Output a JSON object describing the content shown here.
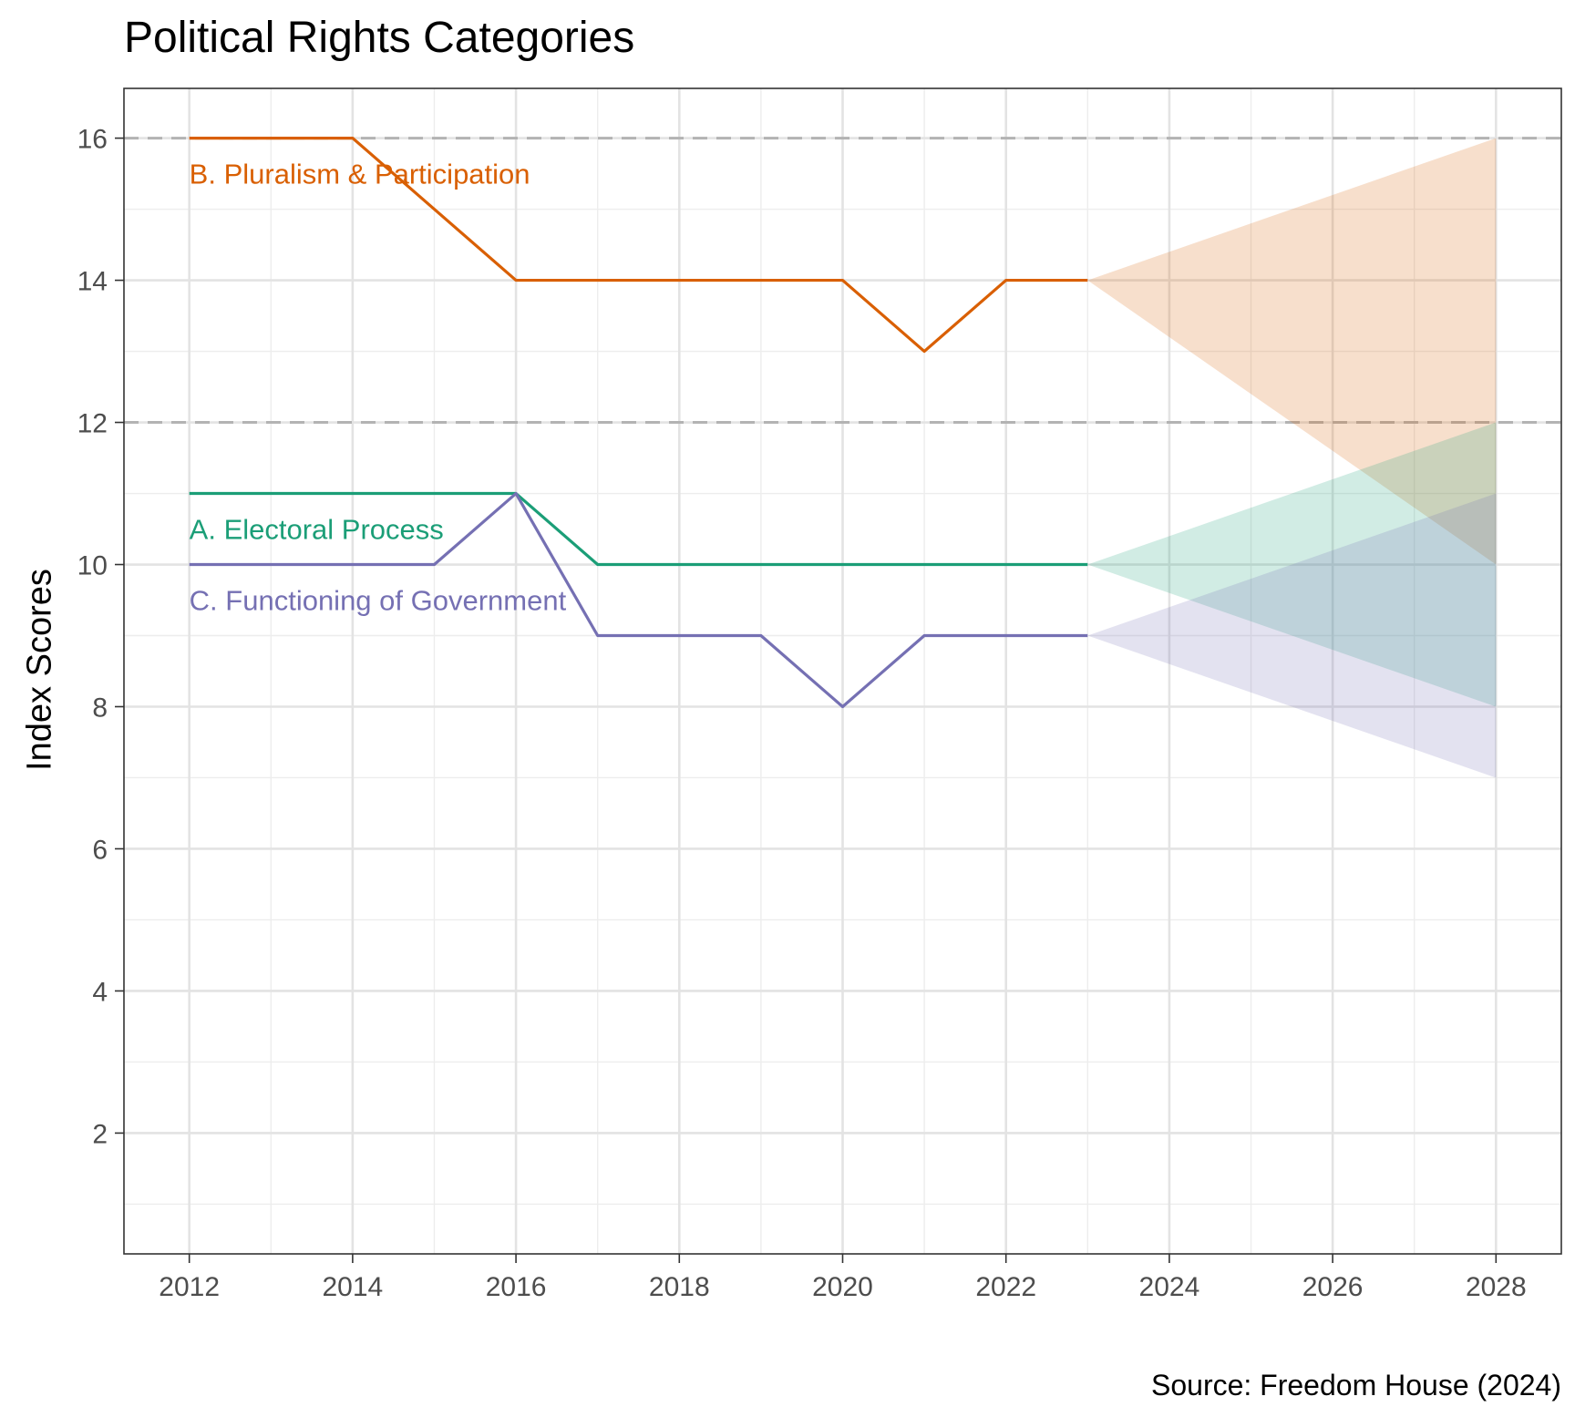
{
  "chart_data": {
    "type": "line",
    "title": "Political Rights Categories",
    "ylabel": "Index Scores",
    "xlabel": "",
    "caption": "Source: Freedom House (2024)",
    "xlim": [
      2011.2,
      2028.8
    ],
    "ylim": [
      0.3,
      16.7
    ],
    "x_ticks": [
      2012,
      2014,
      2016,
      2018,
      2020,
      2022,
      2024,
      2026,
      2028
    ],
    "y_ticks": [
      2,
      4,
      6,
      8,
      10,
      12,
      14,
      16
    ],
    "grid": true,
    "reference_lines": [
      16,
      12
    ],
    "x": [
      2012,
      2013,
      2014,
      2015,
      2016,
      2017,
      2018,
      2019,
      2020,
      2021,
      2022,
      2023
    ],
    "series": [
      {
        "name": "B. Pluralism & Participation",
        "color": "#D95F02",
        "values": [
          16,
          16,
          16,
          15,
          14,
          14,
          14,
          14,
          14,
          13,
          14,
          14
        ],
        "projection": {
          "from": [
            2023,
            14
          ],
          "to_x": 2028,
          "upper": 16,
          "lower": 10
        }
      },
      {
        "name": "A. Electoral Process",
        "color": "#1B9E77",
        "values": [
          11,
          11,
          11,
          11,
          11,
          10,
          10,
          10,
          10,
          10,
          10,
          10
        ],
        "projection": {
          "from": [
            2023,
            10
          ],
          "to_x": 2028,
          "upper": 12,
          "lower": 8
        }
      },
      {
        "name": "C. Functioning of Government",
        "color": "#7570B3",
        "values": [
          10,
          10,
          10,
          10,
          11,
          9,
          9,
          9,
          8,
          9,
          9,
          9
        ],
        "projection": {
          "from": [
            2023,
            9
          ],
          "to_x": 2028,
          "upper": 11,
          "lower": 7
        }
      }
    ]
  }
}
